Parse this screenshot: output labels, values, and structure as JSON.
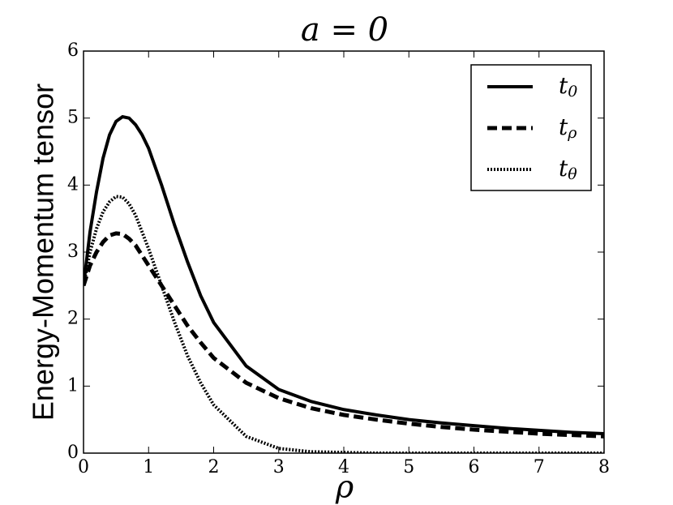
{
  "chart_data": {
    "type": "line",
    "title": "a = 0",
    "xlabel": "ρ",
    "ylabel": "Energy-Momentum tensor",
    "x": [
      0,
      0.1,
      0.2,
      0.3,
      0.4,
      0.5,
      0.6,
      0.7,
      0.8,
      0.9,
      1.0,
      1.2,
      1.4,
      1.6,
      1.8,
      2.0,
      2.5,
      3.0,
      3.5,
      4.0,
      4.5,
      5.0,
      5.5,
      6.0,
      6.5,
      7.0,
      7.5,
      8.0
    ],
    "series": [
      {
        "name": "t0",
        "color": "#000000",
        "linestyle": "solid",
        "values": [
          2.5,
          3.3,
          3.9,
          4.4,
          4.75,
          4.95,
          5.02,
          5.0,
          4.9,
          4.75,
          4.55,
          4.0,
          3.4,
          2.85,
          2.35,
          1.95,
          1.3,
          0.95,
          0.77,
          0.65,
          0.57,
          0.5,
          0.45,
          0.41,
          0.37,
          0.34,
          0.31,
          0.29
        ]
      },
      {
        "name": "tρ",
        "color": "#000000",
        "linestyle": "dashed",
        "values": [
          2.5,
          2.8,
          3.0,
          3.15,
          3.25,
          3.28,
          3.27,
          3.2,
          3.1,
          2.95,
          2.8,
          2.5,
          2.2,
          1.9,
          1.65,
          1.42,
          1.05,
          0.82,
          0.67,
          0.57,
          0.5,
          0.44,
          0.39,
          0.35,
          0.32,
          0.29,
          0.27,
          0.25
        ]
      },
      {
        "name": "tθ",
        "color": "#000000",
        "linestyle": "dotted",
        "values": [
          2.5,
          3.0,
          3.35,
          3.6,
          3.75,
          3.83,
          3.82,
          3.72,
          3.55,
          3.3,
          3.05,
          2.5,
          1.95,
          1.45,
          1.05,
          0.72,
          0.25,
          0.07,
          0.02,
          0.01,
          0,
          0,
          0,
          0,
          0,
          0,
          0,
          0
        ]
      }
    ],
    "xlim": [
      0,
      8
    ],
    "xticks": [
      0,
      1,
      2,
      3,
      4,
      5,
      6,
      7,
      8
    ],
    "ylim": [
      0,
      6
    ],
    "yticks": [
      0,
      1,
      2,
      3,
      4,
      5,
      6
    ],
    "legend": "upper right"
  }
}
